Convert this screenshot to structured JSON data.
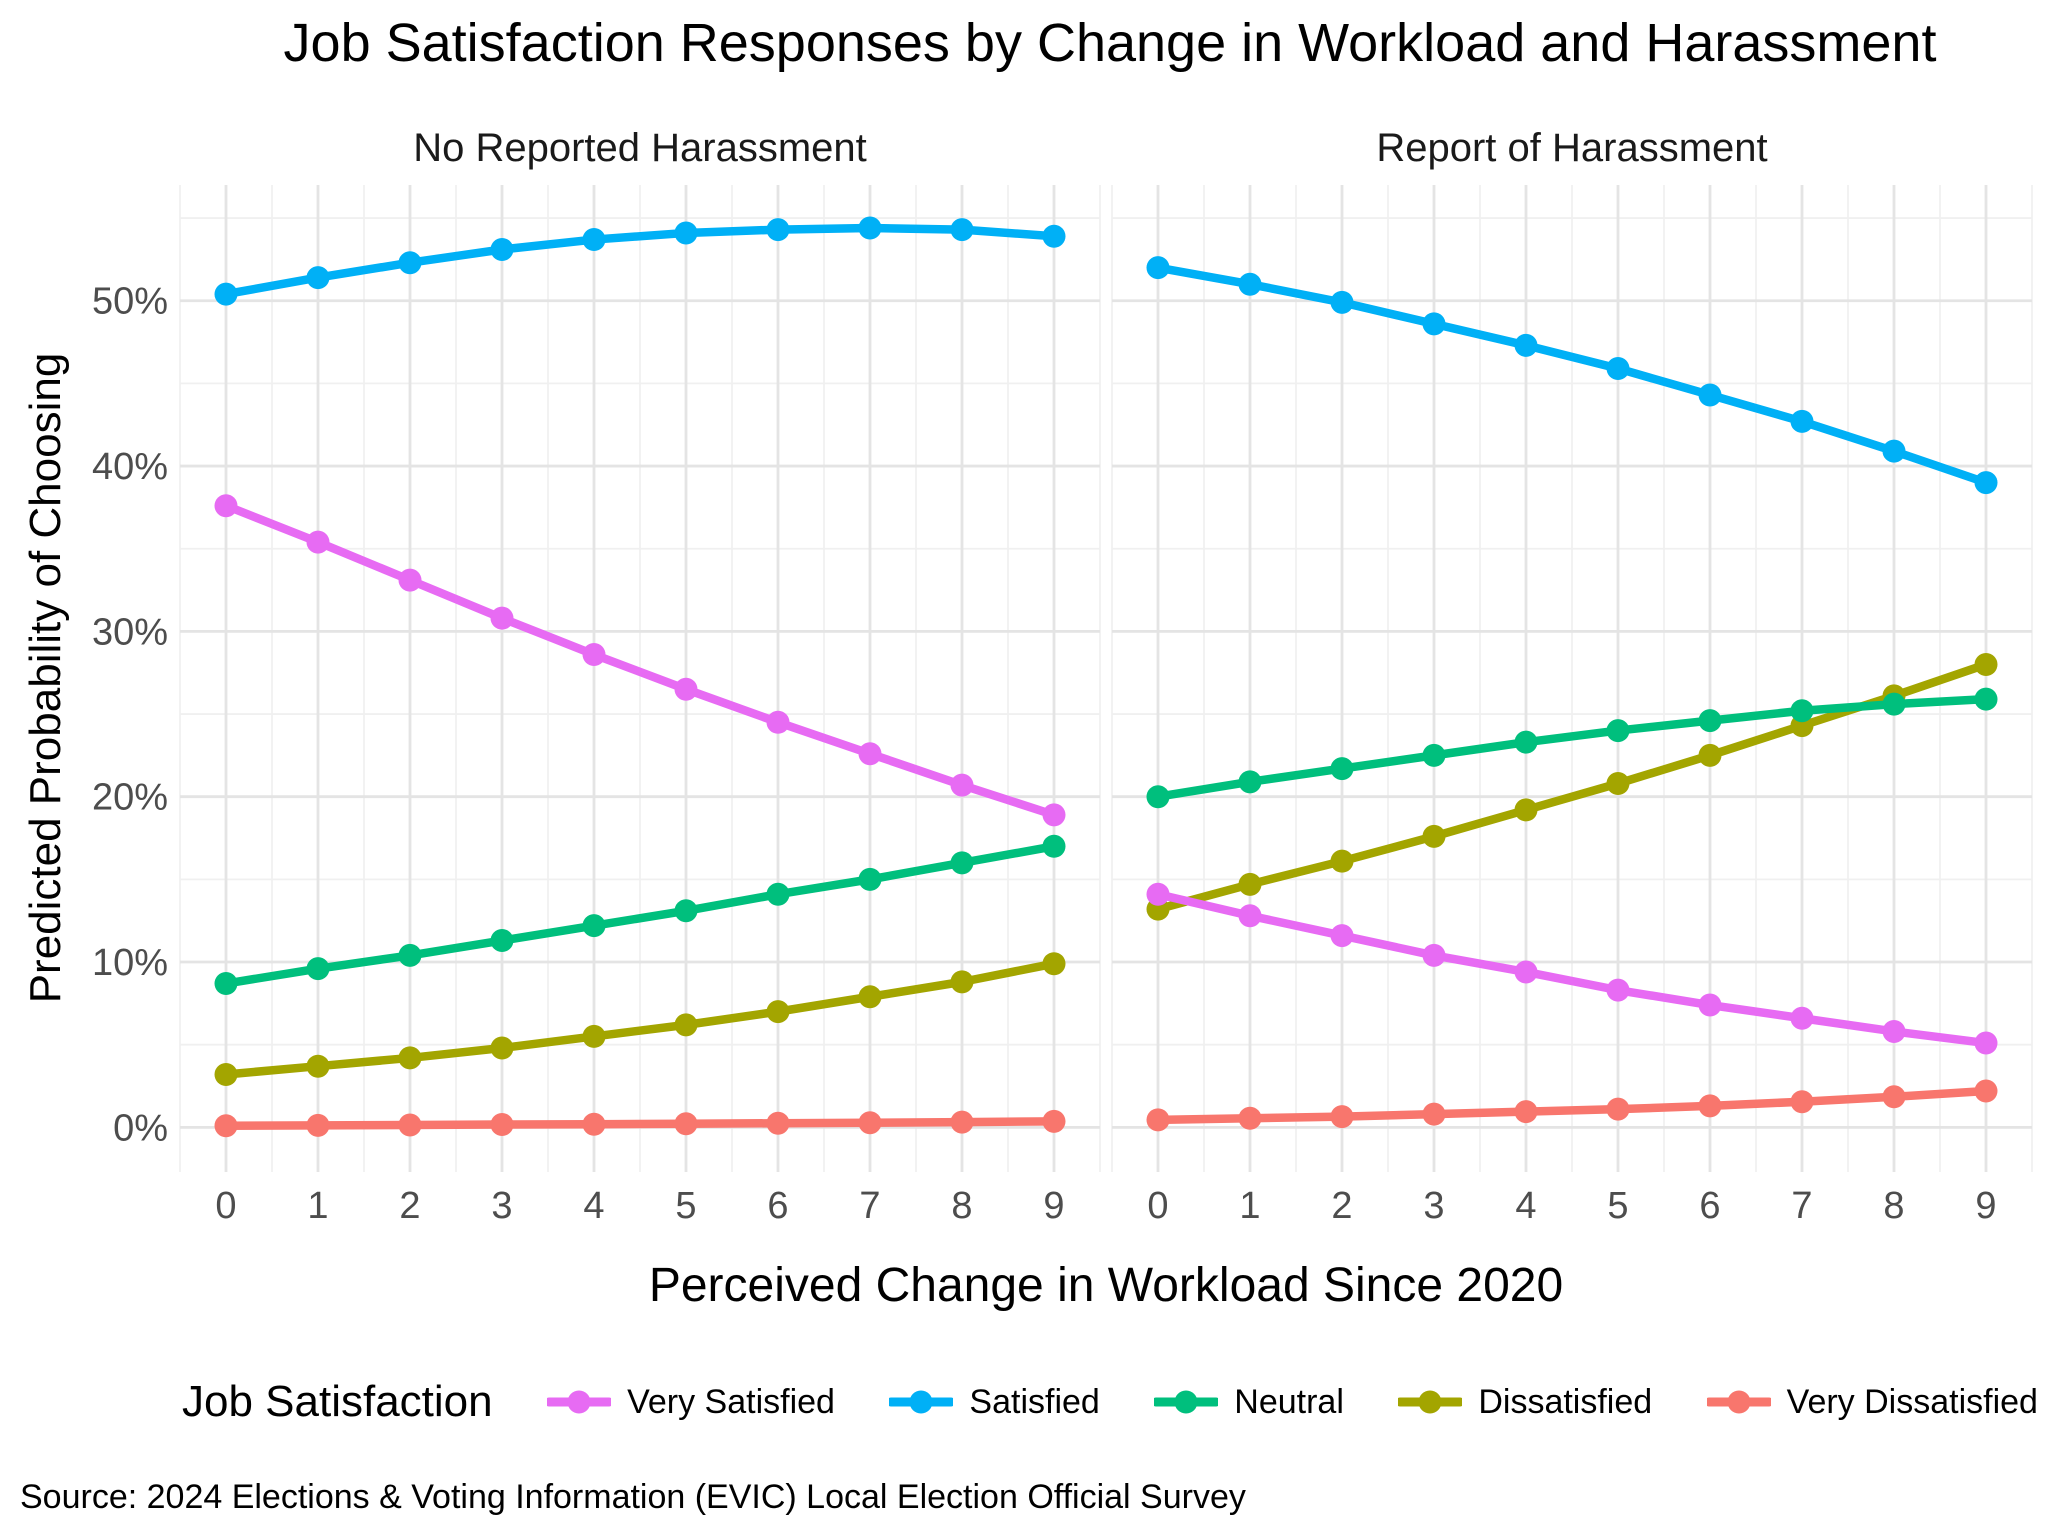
{
  "title": "Job Satisfaction Responses by Change in Workload and Harassment",
  "source": "Source: 2024 Elections & Voting Information (EVIC) Local Election Official Survey",
  "chart_data": {
    "type": "line",
    "title": "Job Satisfaction Responses by Change in Workload and Harassment",
    "xlabel": "Perceived Change in Workload Since 2020",
    "ylabel": "Predicted Probability of Choosing",
    "legend_title": "Job Satisfaction",
    "legend_position": "bottom",
    "grid": true,
    "x": [
      0,
      1,
      2,
      3,
      4,
      5,
      6,
      7,
      8,
      9
    ],
    "x_tick_labels": [
      "0",
      "1",
      "2",
      "3",
      "4",
      "5",
      "6",
      "7",
      "8",
      "9"
    ],
    "ylim": [
      -2.7,
      57
    ],
    "yticks": [
      0,
      10,
      20,
      30,
      40,
      50
    ],
    "ytick_labels": [
      "0%",
      "10%",
      "20%",
      "30%",
      "40%",
      "50%"
    ],
    "facets": [
      {
        "label": "No Reported Harassment",
        "series": [
          {
            "name": "Very Satisfied",
            "color": "#E76BF3",
            "values": [
              37.6,
              35.4,
              33.1,
              30.8,
              28.6,
              26.5,
              24.5,
              22.6,
              20.7,
              18.9
            ]
          },
          {
            "name": "Satisfied",
            "color": "#00B0F6",
            "values": [
              50.4,
              51.4,
              52.3,
              53.1,
              53.7,
              54.1,
              54.3,
              54.4,
              54.3,
              53.9
            ]
          },
          {
            "name": "Neutral",
            "color": "#00BF7D",
            "values": [
              8.7,
              9.6,
              10.4,
              11.3,
              12.2,
              13.1,
              14.1,
              15.0,
              16.0,
              17.0
            ]
          },
          {
            "name": "Dissatisfied",
            "color": "#A3A500",
            "values": [
              3.2,
              3.7,
              4.2,
              4.8,
              5.5,
              6.2,
              7.0,
              7.9,
              8.8,
              9.9
            ]
          },
          {
            "name": "Very Dissatisfied",
            "color": "#F8766D",
            "values": [
              0.1,
              0.12,
              0.14,
              0.17,
              0.19,
              0.22,
              0.25,
              0.28,
              0.32,
              0.36
            ]
          }
        ]
      },
      {
        "label": "Report of Harassment",
        "series": [
          {
            "name": "Very Satisfied",
            "color": "#E76BF3",
            "values": [
              14.1,
              12.8,
              11.6,
              10.4,
              9.4,
              8.3,
              7.4,
              6.6,
              5.8,
              5.1
            ]
          },
          {
            "name": "Satisfied",
            "color": "#00B0F6",
            "values": [
              52.0,
              51.0,
              49.9,
              48.6,
              47.3,
              45.9,
              44.3,
              42.7,
              40.9,
              39.0
            ]
          },
          {
            "name": "Neutral",
            "color": "#00BF7D",
            "values": [
              20.0,
              20.9,
              21.7,
              22.5,
              23.3,
              24.0,
              24.6,
              25.2,
              25.6,
              25.9
            ]
          },
          {
            "name": "Dissatisfied",
            "color": "#A3A500",
            "values": [
              13.2,
              14.7,
              16.1,
              17.6,
              19.2,
              20.8,
              22.5,
              24.3,
              26.1,
              28.0
            ]
          },
          {
            "name": "Very Dissatisfied",
            "color": "#F8766D",
            "values": [
              0.45,
              0.55,
              0.65,
              0.8,
              0.95,
              1.1,
              1.3,
              1.55,
              1.85,
              2.2
            ]
          }
        ]
      }
    ]
  }
}
